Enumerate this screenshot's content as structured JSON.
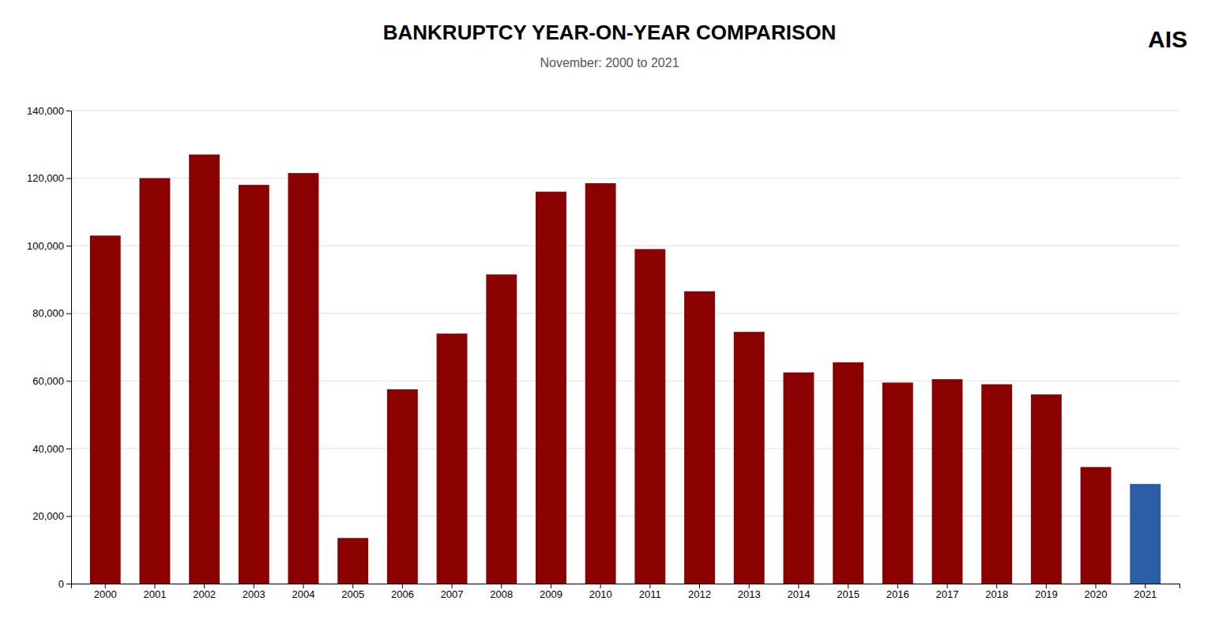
{
  "chart_data": {
    "type": "bar",
    "title": "BANKRUPTCY YEAR-ON-YEAR COMPARISON",
    "subtitle": "November: 2000 to 2021",
    "annotations": [
      "AIS"
    ],
    "categories": [
      "2000",
      "2001",
      "2002",
      "2003",
      "2004",
      "2005",
      "2006",
      "2007",
      "2008",
      "2009",
      "2010",
      "2011",
      "2012",
      "2013",
      "2014",
      "2015",
      "2016",
      "2017",
      "2018",
      "2019",
      "2020",
      "2021"
    ],
    "values": [
      103000,
      120000,
      127000,
      118000,
      121500,
      13500,
      57500,
      74000,
      91500,
      116000,
      118500,
      99000,
      86500,
      74500,
      62500,
      65500,
      59500,
      60500,
      59000,
      56000,
      34500,
      29500
    ],
    "colors": [
      "#8B0000",
      "#8B0000",
      "#8B0000",
      "#8B0000",
      "#8B0000",
      "#8B0000",
      "#8B0000",
      "#8B0000",
      "#8B0000",
      "#8B0000",
      "#8B0000",
      "#8B0000",
      "#8B0000",
      "#8B0000",
      "#8B0000",
      "#8B0000",
      "#8B0000",
      "#8B0000",
      "#8B0000",
      "#8B0000",
      "#8B0000",
      "#2B5EA7"
    ],
    "ylim": [
      0,
      140000
    ],
    "yticks": [
      0,
      {
        "value": 20000,
        "label": "20,000"
      },
      {
        "value": 40000,
        "label": "40,000"
      },
      {
        "value": 60000,
        "label": "60,000"
      },
      {
        "value": 80000,
        "label": "80,000"
      },
      {
        "value": 100000,
        "label": "100,000"
      },
      {
        "value": 120000,
        "label": "120,000"
      },
      {
        "value": 140000,
        "label": "140,000"
      }
    ],
    "grid": true
  }
}
